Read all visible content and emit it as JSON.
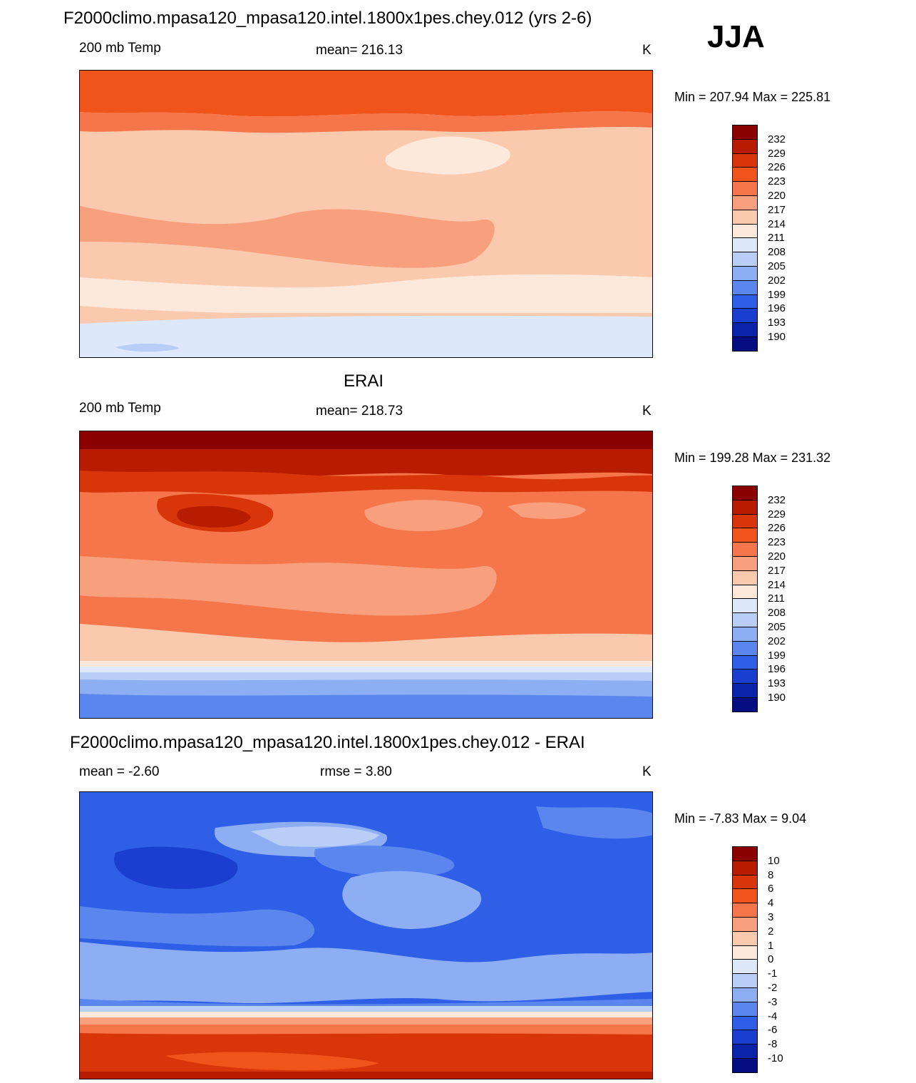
{
  "title": "F2000climo.mpasa120_mpasa120.intel.1800x1pes.chey.012 (yrs 2-6)",
  "season": "JJA",
  "panels": [
    {
      "heading": "",
      "left_label": "200 mb Temp",
      "center_label": "mean= 216.13",
      "units": "K",
      "minmax": "Min = 207.94 Max = 225.81",
      "colorbar_labels": [
        "232",
        "229",
        "226",
        "223",
        "220",
        "217",
        "214",
        "211",
        "208",
        "205",
        "202",
        "199",
        "196",
        "193",
        "190"
      ]
    },
    {
      "heading": "ERAI",
      "left_label": "200 mb Temp",
      "center_label": "mean= 218.73",
      "units": "K",
      "minmax": "Min = 199.28 Max = 231.32",
      "colorbar_labels": [
        "232",
        "229",
        "226",
        "223",
        "220",
        "217",
        "214",
        "211",
        "208",
        "205",
        "202",
        "199",
        "196",
        "193",
        "190"
      ]
    },
    {
      "heading": "F2000climo.mpasa120_mpasa120.intel.1800x1pes.chey.012 - ERAI",
      "left_label": "mean =  -2.60",
      "center_label": "rmse =   3.80",
      "units": "K",
      "minmax": "Min =  -7.83 Max =   9.04",
      "colorbar_labels": [
        "10",
        "8",
        "6",
        "4",
        "3",
        "2",
        "1",
        "0",
        "-1",
        "-2",
        "-3",
        "-4",
        "-6",
        "-8",
        "-10"
      ]
    }
  ],
  "colors": {
    "scale": [
      "#8b0000",
      "#b71c00",
      "#d8360a",
      "#f0541b",
      "#f6764b",
      "#f89f7e",
      "#fbc9ad",
      "#fde9dc",
      "#dde8fb",
      "#b8cef7",
      "#8daef3",
      "#5a86ee",
      "#2e5fe6",
      "#1a3fd0",
      "#0b23a8",
      "#050d80"
    ]
  }
}
